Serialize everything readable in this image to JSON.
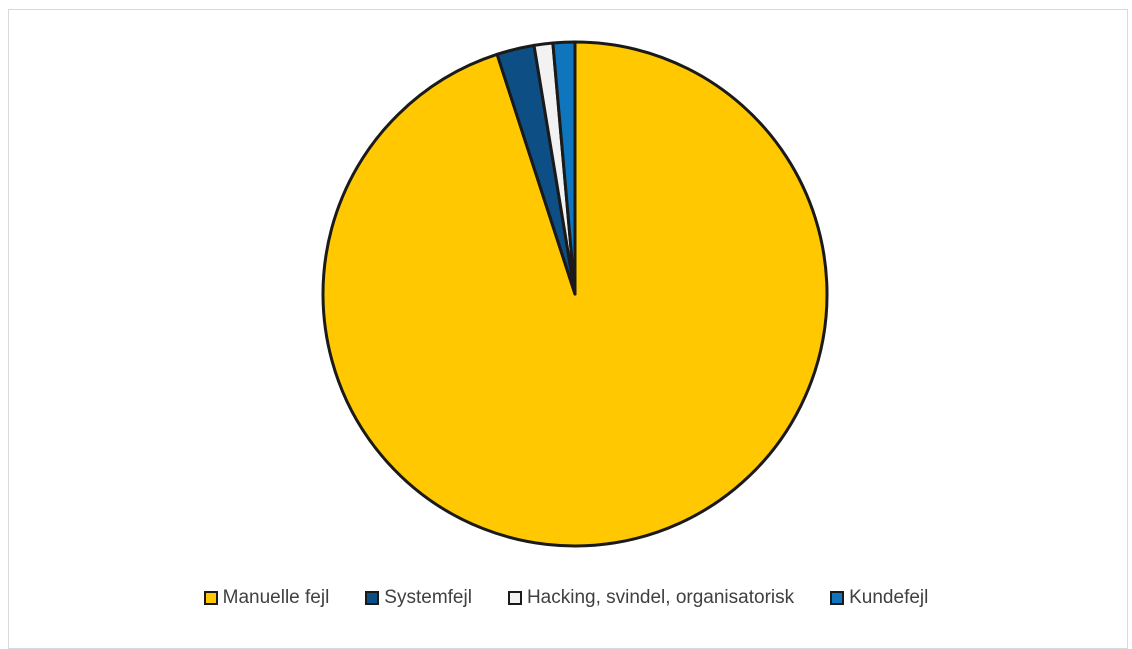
{
  "chart_data": {
    "type": "pie",
    "categories": [
      "Manuelle fejl",
      "Systemfejl",
      "Hacking, svindel, organisatorisk",
      "Kundefejl"
    ],
    "values": [
      95.0,
      2.4,
      1.2,
      1.4
    ],
    "colors": [
      "#ffc800",
      "#0d4f85",
      "#f2f2f2",
      "#0f75bc"
    ],
    "start_angle": "12 o'clock",
    "direction": "counter-clockwise from the top for the large slice, small slices lying just left of 12 o'clock",
    "legend_position": "bottom"
  }
}
